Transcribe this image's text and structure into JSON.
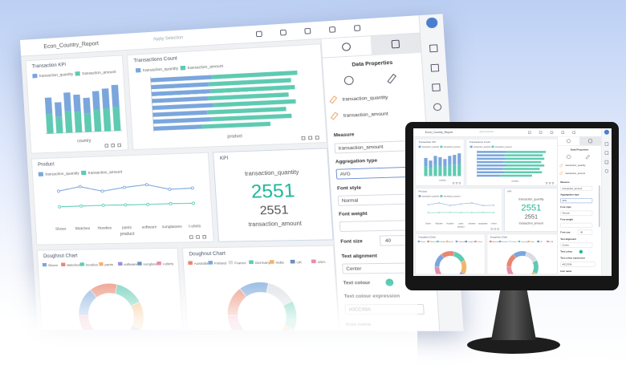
{
  "header": {
    "report_title": "Econ_Country_Report",
    "apply_selection": "Apply Selection"
  },
  "transaction_kpi": {
    "type": "bar",
    "title": "Transaction KPI",
    "x_label": "country",
    "ylim": [
      0,
      100
    ],
    "series": [
      {
        "name": "transaction_quantity",
        "color": "#7aa6dc",
        "values": [
          32,
          28,
          36,
          33,
          30,
          36,
          38,
          42
        ]
      },
      {
        "name": "transaction_amount",
        "color": "#5fcab2",
        "values": [
          38,
          32,
          42,
          40,
          36,
          42,
          44,
          46
        ]
      }
    ]
  },
  "transactions_count": {
    "type": "bar",
    "orientation": "horizontal",
    "title": "Transactions Count",
    "x_label": "product",
    "xlim": [
      0,
      100
    ],
    "series": [
      {
        "name": "transaction_quantity",
        "color": "#7aa6dc",
        "values": [
          38,
          36,
          37,
          35,
          38,
          34,
          36,
          30
        ]
      },
      {
        "name": "transaction_amount",
        "color": "#5fcab2",
        "values": [
          52,
          50,
          51,
          49,
          50,
          48,
          49,
          42
        ]
      }
    ]
  },
  "product": {
    "type": "line",
    "title": "Product",
    "x_label": "product",
    "ylim": [
      0,
      16000
    ],
    "categories": [
      "Shoes",
      "Watches",
      "Hoodies",
      "pants",
      "software",
      "sunglasses",
      "t-shirts"
    ],
    "series": [
      {
        "name": "transaction_quantity",
        "color": "#7aa6dc",
        "values": [
          12500,
          14000,
          12000,
          13200,
          14000,
          12000,
          12200
        ]
      },
      {
        "name": "transaction_amount",
        "color": "#5fcab2",
        "values": [
          6500,
          6600,
          6650,
          6600,
          6550,
          6650,
          6550
        ]
      }
    ]
  },
  "kpi": {
    "title": "KPI",
    "label_top": "transaction_quantity",
    "value": 2551,
    "value_secondary": 2551,
    "label_bottom": "transaction_amount",
    "color": "#1fb89a"
  },
  "doughnut_product": {
    "type": "pie",
    "title": "Doughnut Chart",
    "categories": [
      "Shoes",
      "Watches",
      "hoodies",
      "pants",
      "software",
      "sunglasses",
      "t-shirts"
    ],
    "colors": [
      "#7aa6dc",
      "#e9866f",
      "#5fcab2",
      "#f2b36b",
      "#9b8fd6",
      "#6c8ebf",
      "#e58fa6"
    ],
    "values": [
      15,
      14,
      14,
      14,
      15,
      14,
      14
    ]
  },
  "doughnut_country": {
    "type": "pie",
    "title": "Doughnut Chart",
    "categories": [
      "Australia",
      "Finland",
      "France",
      "Germany",
      "India",
      "UK",
      "USA"
    ],
    "colors": [
      "#e9866f",
      "#7aa6dc",
      "#d9dde3",
      "#5fcab2",
      "#f2b36b",
      "#6c8ebf",
      "#e58fa6"
    ],
    "values": [
      15,
      14,
      14,
      14,
      15,
      14,
      14
    ]
  },
  "properties": {
    "title": "Data Properties",
    "fields": [
      "transaction_quantity",
      "transaction_amount"
    ],
    "measure_label": "Measure",
    "measure": "transaction_amount",
    "aggregation_label": "Aggregation type",
    "aggregation": "AVG",
    "font_style_label": "Font style",
    "font_style": "Normal",
    "font_weight_label": "Font weight",
    "font_size_label": "Font size",
    "font_size": 40,
    "alignment_label": "Text alignment",
    "alignment": "Center",
    "colour_label": "Text colour",
    "colour": "#1fb89a",
    "colour_expression_label": "Text colour expression",
    "colour_expression": "#0CC09A",
    "icon_name_label": "Icon name"
  }
}
